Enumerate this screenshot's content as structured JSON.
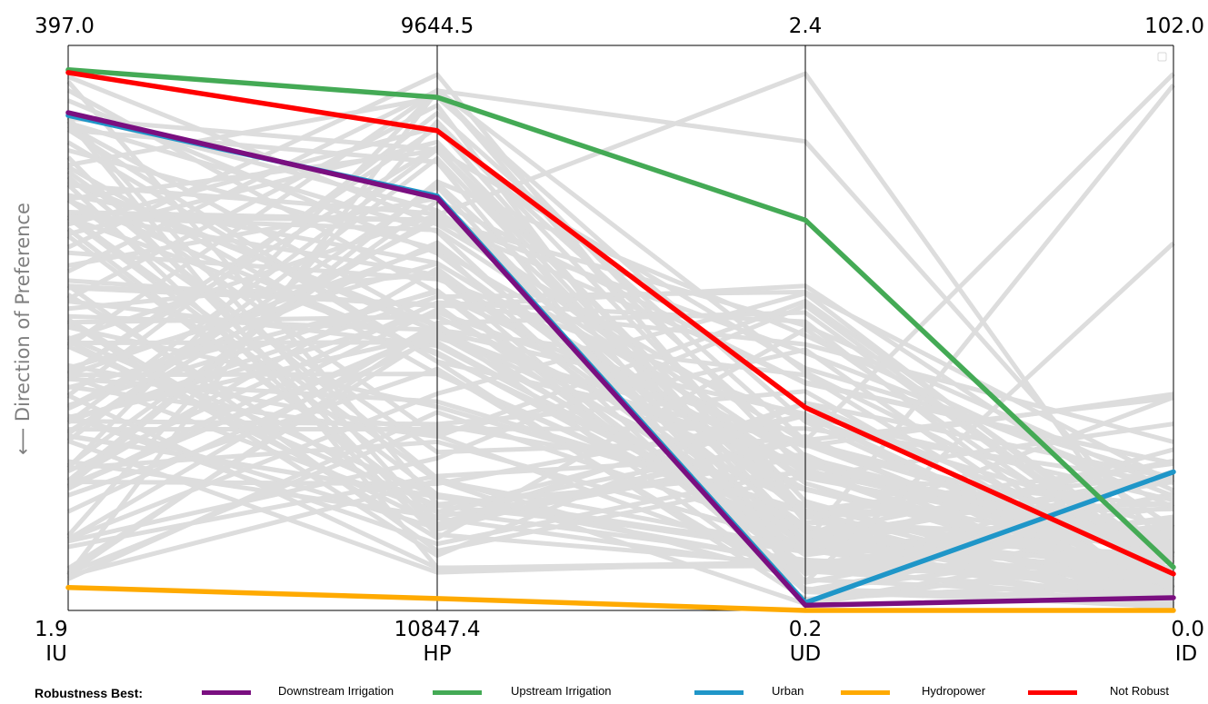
{
  "chart_data": {
    "type": "parallel-coordinates",
    "axes": [
      {
        "name": "IU",
        "top_tick": "397.0",
        "bottom_tick": "1.9"
      },
      {
        "name": "HP",
        "top_tick": "9644.5",
        "bottom_tick": "10847.4"
      },
      {
        "name": "UD",
        "top_tick": "2.4",
        "bottom_tick": "0.2"
      },
      {
        "name": "ID",
        "top_tick": "102.0",
        "bottom_tick": "0.0"
      }
    ],
    "ylabel": "⟵ Direction of Preference",
    "legend_title": "Robustness Best:",
    "highlighted_series": [
      {
        "name": "Downstream Irrigation",
        "color": "#7a0f80",
        "values": [
          350.0,
          9969.2,
          0.22,
          2.3
        ]
      },
      {
        "name": "Upstream Irrigation",
        "color": "#44aa55",
        "values": [
          380.0,
          9754.9,
          1.72,
          7.8
        ]
      },
      {
        "name": "Urban",
        "color": "#1f96c8",
        "values": [
          348.0,
          9965.2,
          0.23,
          25.0
        ]
      },
      {
        "name": "Hydropower",
        "color": "#ffaa00",
        "values": [
          18.0,
          10822.0,
          0.2,
          0.0
        ]
      },
      {
        "name": "Not Robust",
        "color": "#ff0000",
        "values": [
          378.0,
          9826.0,
          0.99,
          6.6
        ]
      }
    ],
    "background_color": "#dddddd",
    "grid": false,
    "legend_position": "bottom"
  }
}
